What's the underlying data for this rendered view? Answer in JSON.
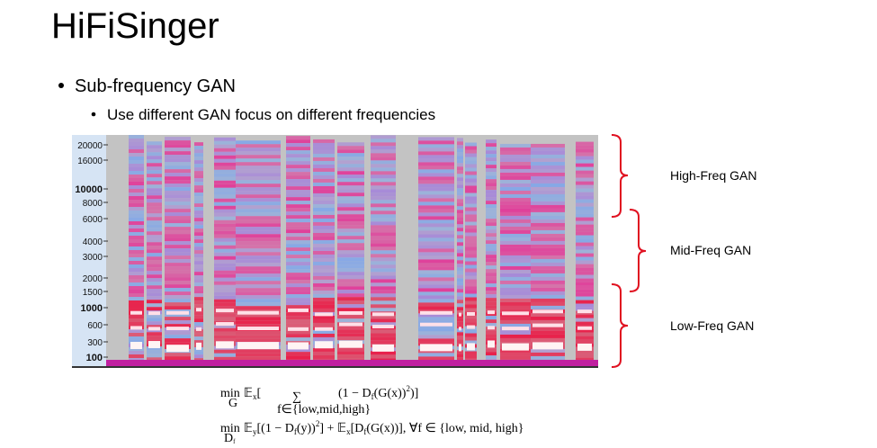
{
  "header": {
    "title": "HiFiSinger"
  },
  "bullets": [
    {
      "text": "Sub-frequency GAN",
      "sub_bullets": [
        "Use different GAN focus on different frequencies"
      ]
    }
  ],
  "figure": {
    "frequency_labels": [
      "20000",
      "16000",
      "10000",
      "8000",
      "6000",
      "4000",
      "3000",
      "2000",
      "1500",
      "1000",
      "600",
      "300",
      "100"
    ],
    "bands": [
      "High-Freq GAN",
      "Mid-Freq GAN",
      "Low-Freq GAN"
    ]
  },
  "formulas": [
    {
      "parts": [
        "min",
        "G",
        "𝔼",
        "x",
        "[",
        "(1 − D",
        "f",
        "(G(x))",
        "2",
        ")]"
      ],
      "sum": "∑",
      "sum_sub": "f∈{low,mid,high}"
    },
    {
      "parts": [
        "min",
        "D",
        "f",
        "𝔼",
        "y",
        "[(1 − D",
        "f",
        "(y))",
        "2",
        "] + 𝔼",
        "x",
        "[D",
        "f",
        "(G(x))], ∀f ∈ {low, mid, high}"
      ]
    }
  ]
}
